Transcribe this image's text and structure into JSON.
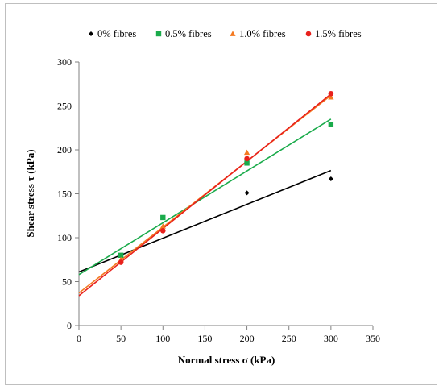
{
  "chart_data": {
    "type": "scatter",
    "xlabel": "Normal stress σ (kPa)",
    "ylabel": "Shear stress τ (kPa)",
    "xlim": [
      0,
      350
    ],
    "ylim": [
      0,
      300
    ],
    "xticks": [
      0,
      50,
      100,
      150,
      200,
      250,
      300,
      350
    ],
    "yticks": [
      0,
      50,
      100,
      150,
      200,
      250,
      300
    ],
    "grid": false,
    "legend": "top",
    "series": [
      {
        "name": "0% fibres",
        "marker": "diamond",
        "color": "#000000",
        "x": [
          50,
          100,
          200,
          300
        ],
        "y": [
          80,
          108,
          151,
          167
        ],
        "fit": {
          "intercept": 61,
          "slope": 0.385
        }
      },
      {
        "name": "0.5% fibres",
        "marker": "square",
        "color": "#1aab4b",
        "x": [
          50,
          100,
          200,
          300
        ],
        "y": [
          80,
          123,
          185,
          229
        ],
        "fit": {
          "intercept": 58,
          "slope": 0.59
        }
      },
      {
        "name": "1.0% fibres",
        "marker": "triangle",
        "color": "#f47920",
        "x": [
          50,
          100,
          200,
          300
        ],
        "y": [
          75,
          113,
          197,
          260
        ],
        "fit": {
          "intercept": 37,
          "slope": 0.75
        }
      },
      {
        "name": "1.5% fibres",
        "marker": "circle",
        "color": "#e8201c",
        "x": [
          50,
          100,
          200,
          300
        ],
        "y": [
          72,
          108,
          190,
          264
        ],
        "fit": {
          "intercept": 34,
          "slope": 0.765
        }
      }
    ]
  }
}
